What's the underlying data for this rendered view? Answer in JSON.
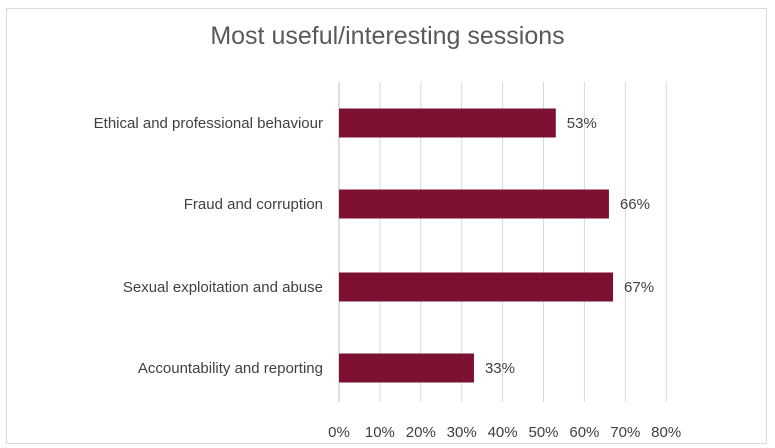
{
  "chart_data": {
    "type": "bar",
    "orientation": "horizontal",
    "title": "Most useful/interesting sessions",
    "categories": [
      "Ethical and professional behaviour",
      "Fraud and corruption",
      "Sexual exploitation and abuse",
      "Accountability and reporting"
    ],
    "values": [
      53,
      66,
      67,
      33
    ],
    "data_labels": [
      "53%",
      "66%",
      "67%",
      "33%"
    ],
    "x_ticks": [
      "0%",
      "10%",
      "20%",
      "30%",
      "40%",
      "50%",
      "60%",
      "70%",
      "80%"
    ],
    "xlim": [
      0,
      80
    ],
    "grid": true,
    "legend": "none",
    "bar_color": "#7b1030"
  }
}
